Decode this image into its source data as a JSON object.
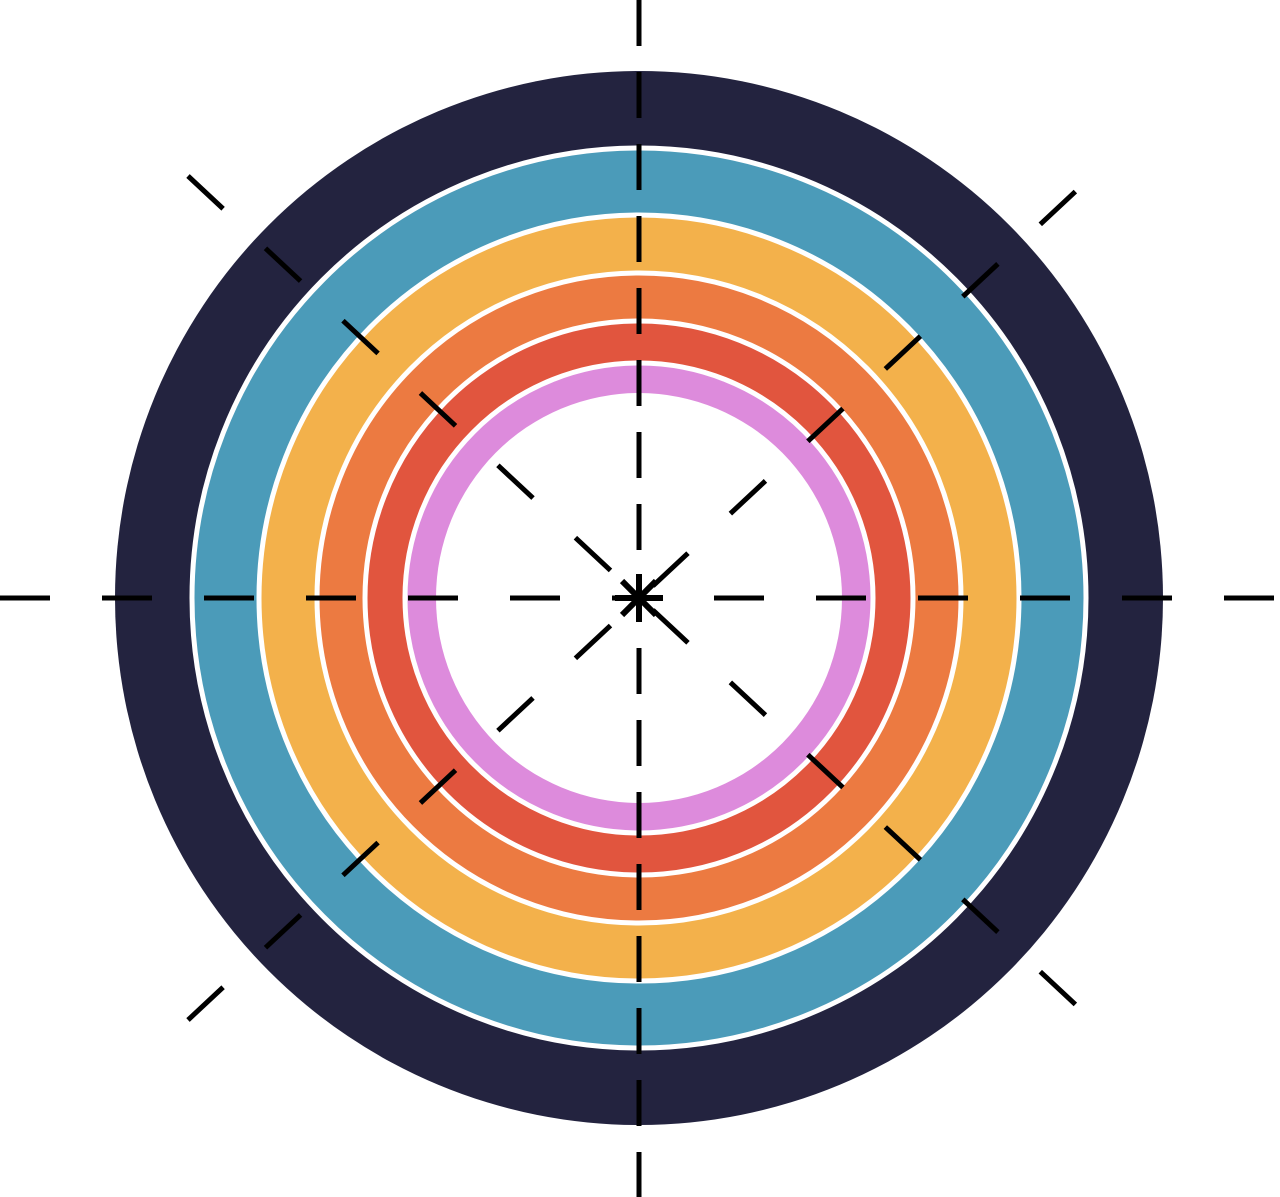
{
  "diagram": {
    "type": "concentric-target",
    "center_marker": "asterisk",
    "rings": [
      {
        "name": "navy-ring",
        "color": "#23233f"
      },
      {
        "name": "blue-ring",
        "color": "#4b9bb9"
      },
      {
        "name": "yellow-ring",
        "color": "#f3b14b"
      },
      {
        "name": "orange-ring",
        "color": "#ec7a41"
      },
      {
        "name": "red-ring",
        "color": "#e1553e"
      },
      {
        "name": "pink-ring",
        "color": "#dd8bdc"
      }
    ],
    "separator_color": "#ffffff",
    "guide_line_color": "#000000",
    "background_color": "#ffffff",
    "guide_lines": {
      "style": "dashed",
      "directions": [
        "horizontal",
        "vertical",
        "diagonal-down",
        "diagonal-up"
      ]
    }
  }
}
